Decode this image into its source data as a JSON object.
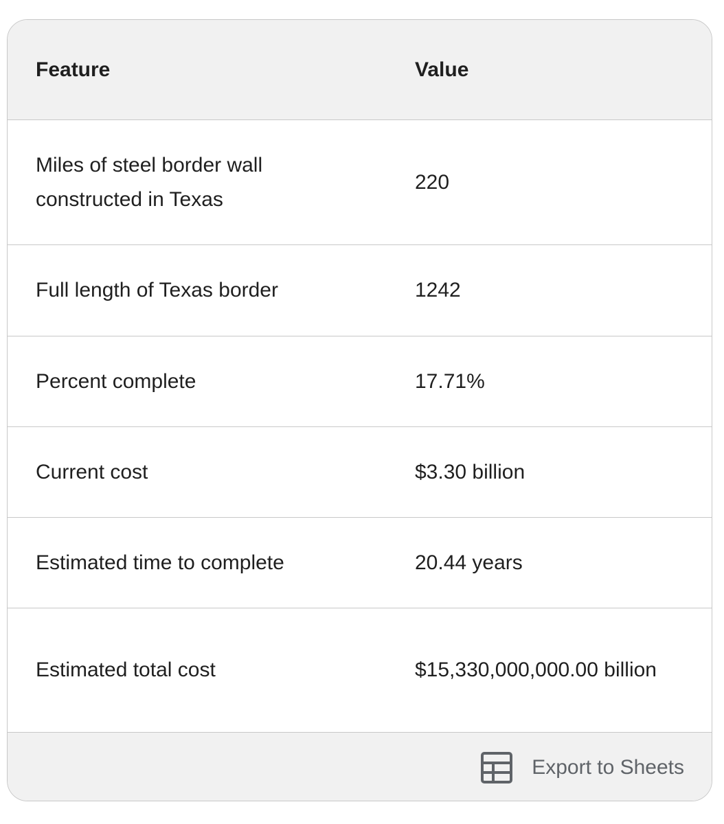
{
  "table": {
    "header": [
      "Feature",
      "Value"
    ],
    "rows": [
      [
        "Miles of steel border wall constructed in Texas",
        "220"
      ],
      [
        "Full length of Texas border",
        "1242"
      ],
      [
        "Percent complete",
        "17.71%"
      ],
      [
        "Current cost",
        "$3.30 billion"
      ],
      [
        "Estimated time to complete",
        "20.44 years"
      ],
      [
        "Estimated total cost",
        "$15,330,000,000.00 billion"
      ]
    ],
    "export_button": "Export to Sheets"
  }
}
